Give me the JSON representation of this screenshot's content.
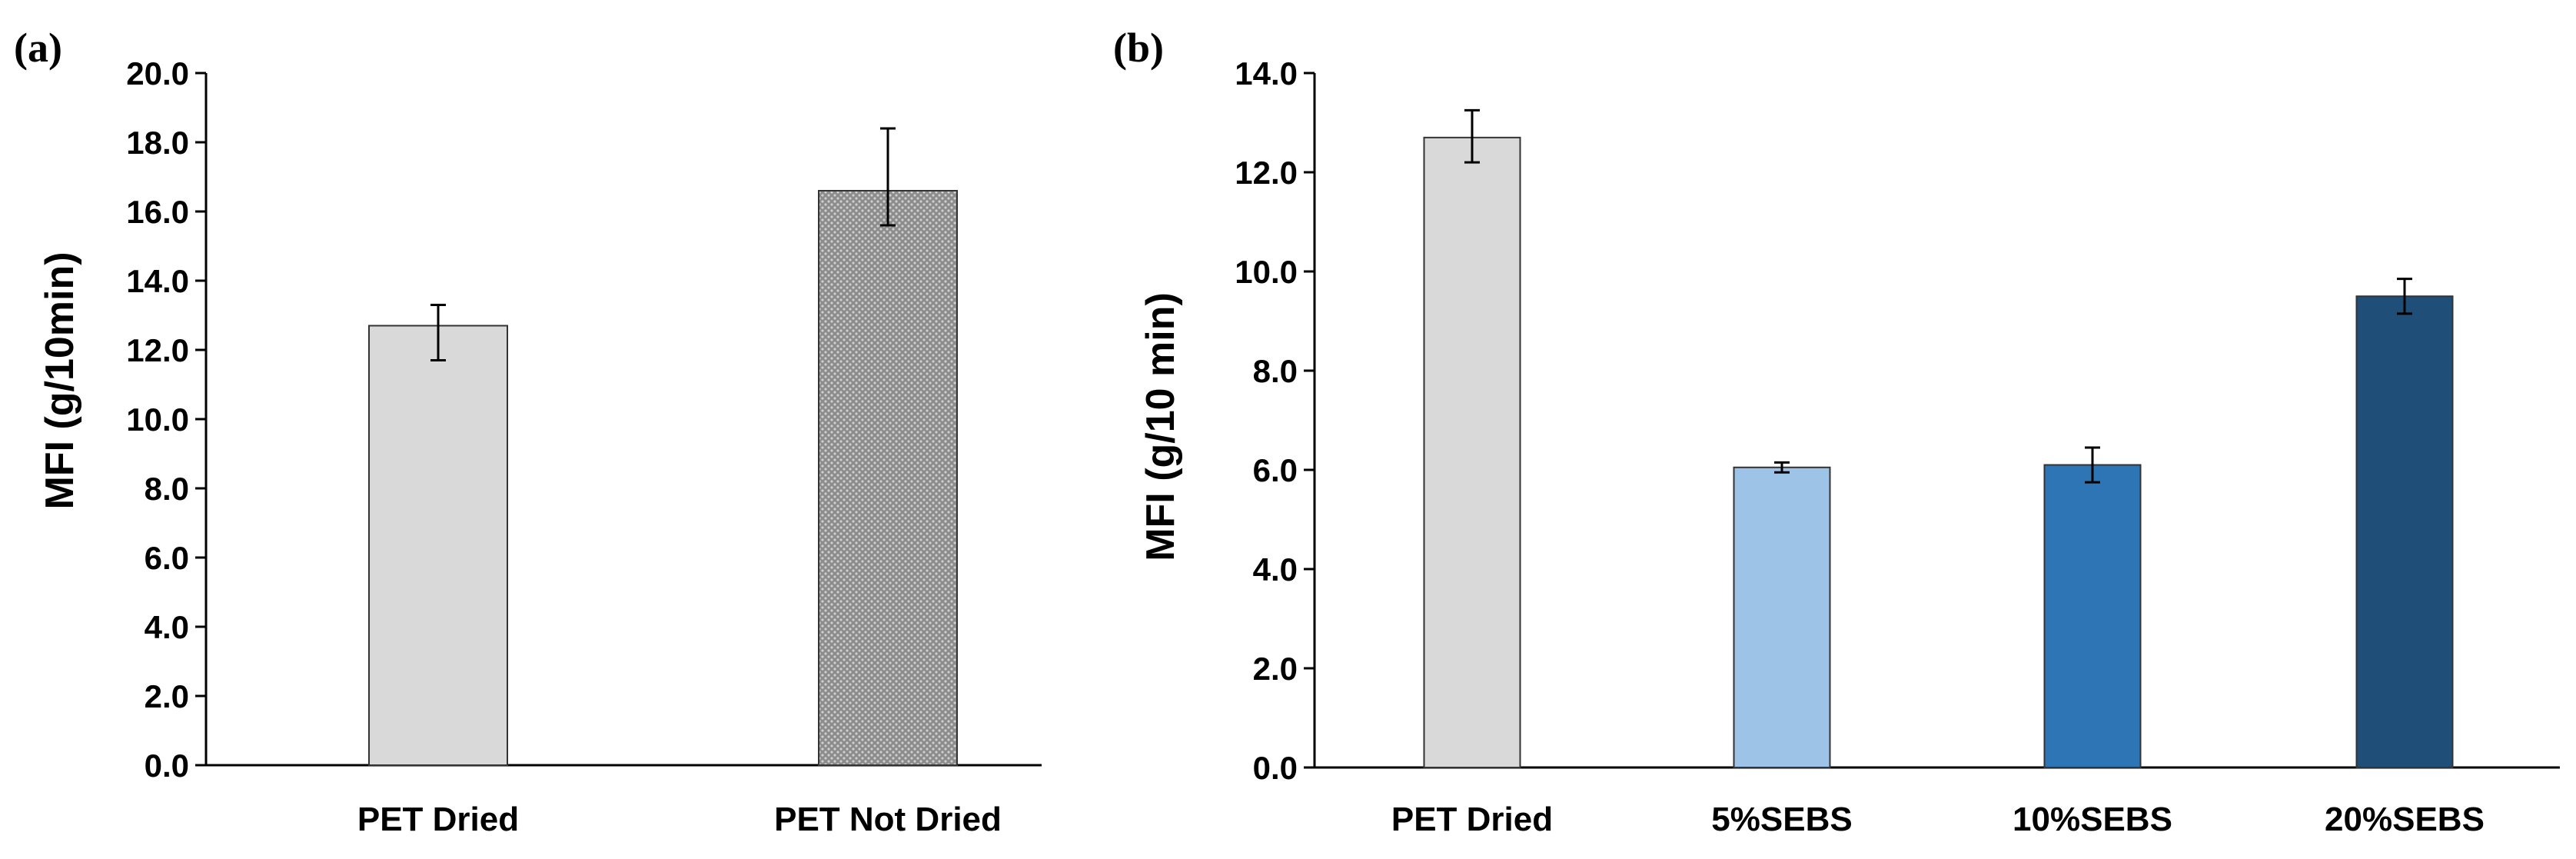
{
  "chart_data": [
    {
      "panel": "(a)",
      "type": "bar",
      "title": "",
      "xlabel": "",
      "ylabel": "MFI (g/10min)",
      "ylim": [
        0,
        20
      ],
      "yticks": [
        "0.0",
        "2.0",
        "4.0",
        "6.0",
        "8.0",
        "10.0",
        "12.0",
        "14.0",
        "16.0",
        "18.0",
        "20.0"
      ],
      "categories": [
        "PET Dried",
        "PET Not Dried"
      ],
      "values": [
        12.7,
        16.6
      ],
      "errors_low": [
        1.0,
        1.0
      ],
      "errors_high": [
        0.6,
        1.8
      ],
      "colors": [
        "#d9d9d9",
        "#9a9a9a"
      ],
      "patterns": [
        "solid",
        "dotted"
      ],
      "grid": false,
      "legend": "none"
    },
    {
      "panel": "(b)",
      "type": "bar",
      "title": "",
      "xlabel": "",
      "ylabel": "MFI (g/10 min)",
      "ylim": [
        0,
        14
      ],
      "yticks": [
        "0.0",
        "2.0",
        "4.0",
        "6.0",
        "8.0",
        "10.0",
        "12.0",
        "14.0"
      ],
      "categories": [
        "PET Dried",
        "5%SEBS",
        "10%SEBS",
        "20%SEBS"
      ],
      "values": [
        12.7,
        6.05,
        6.1,
        9.5
      ],
      "errors_low": [
        0.5,
        0.1,
        0.35,
        0.35
      ],
      "errors_high": [
        0.55,
        0.1,
        0.35,
        0.35
      ],
      "colors": [
        "#d9d9d9",
        "#9dc3e6",
        "#2e75b6",
        "#1f4e79"
      ],
      "patterns": [
        "solid",
        "solid",
        "solid",
        "solid"
      ],
      "grid": false,
      "legend": "none"
    }
  ]
}
